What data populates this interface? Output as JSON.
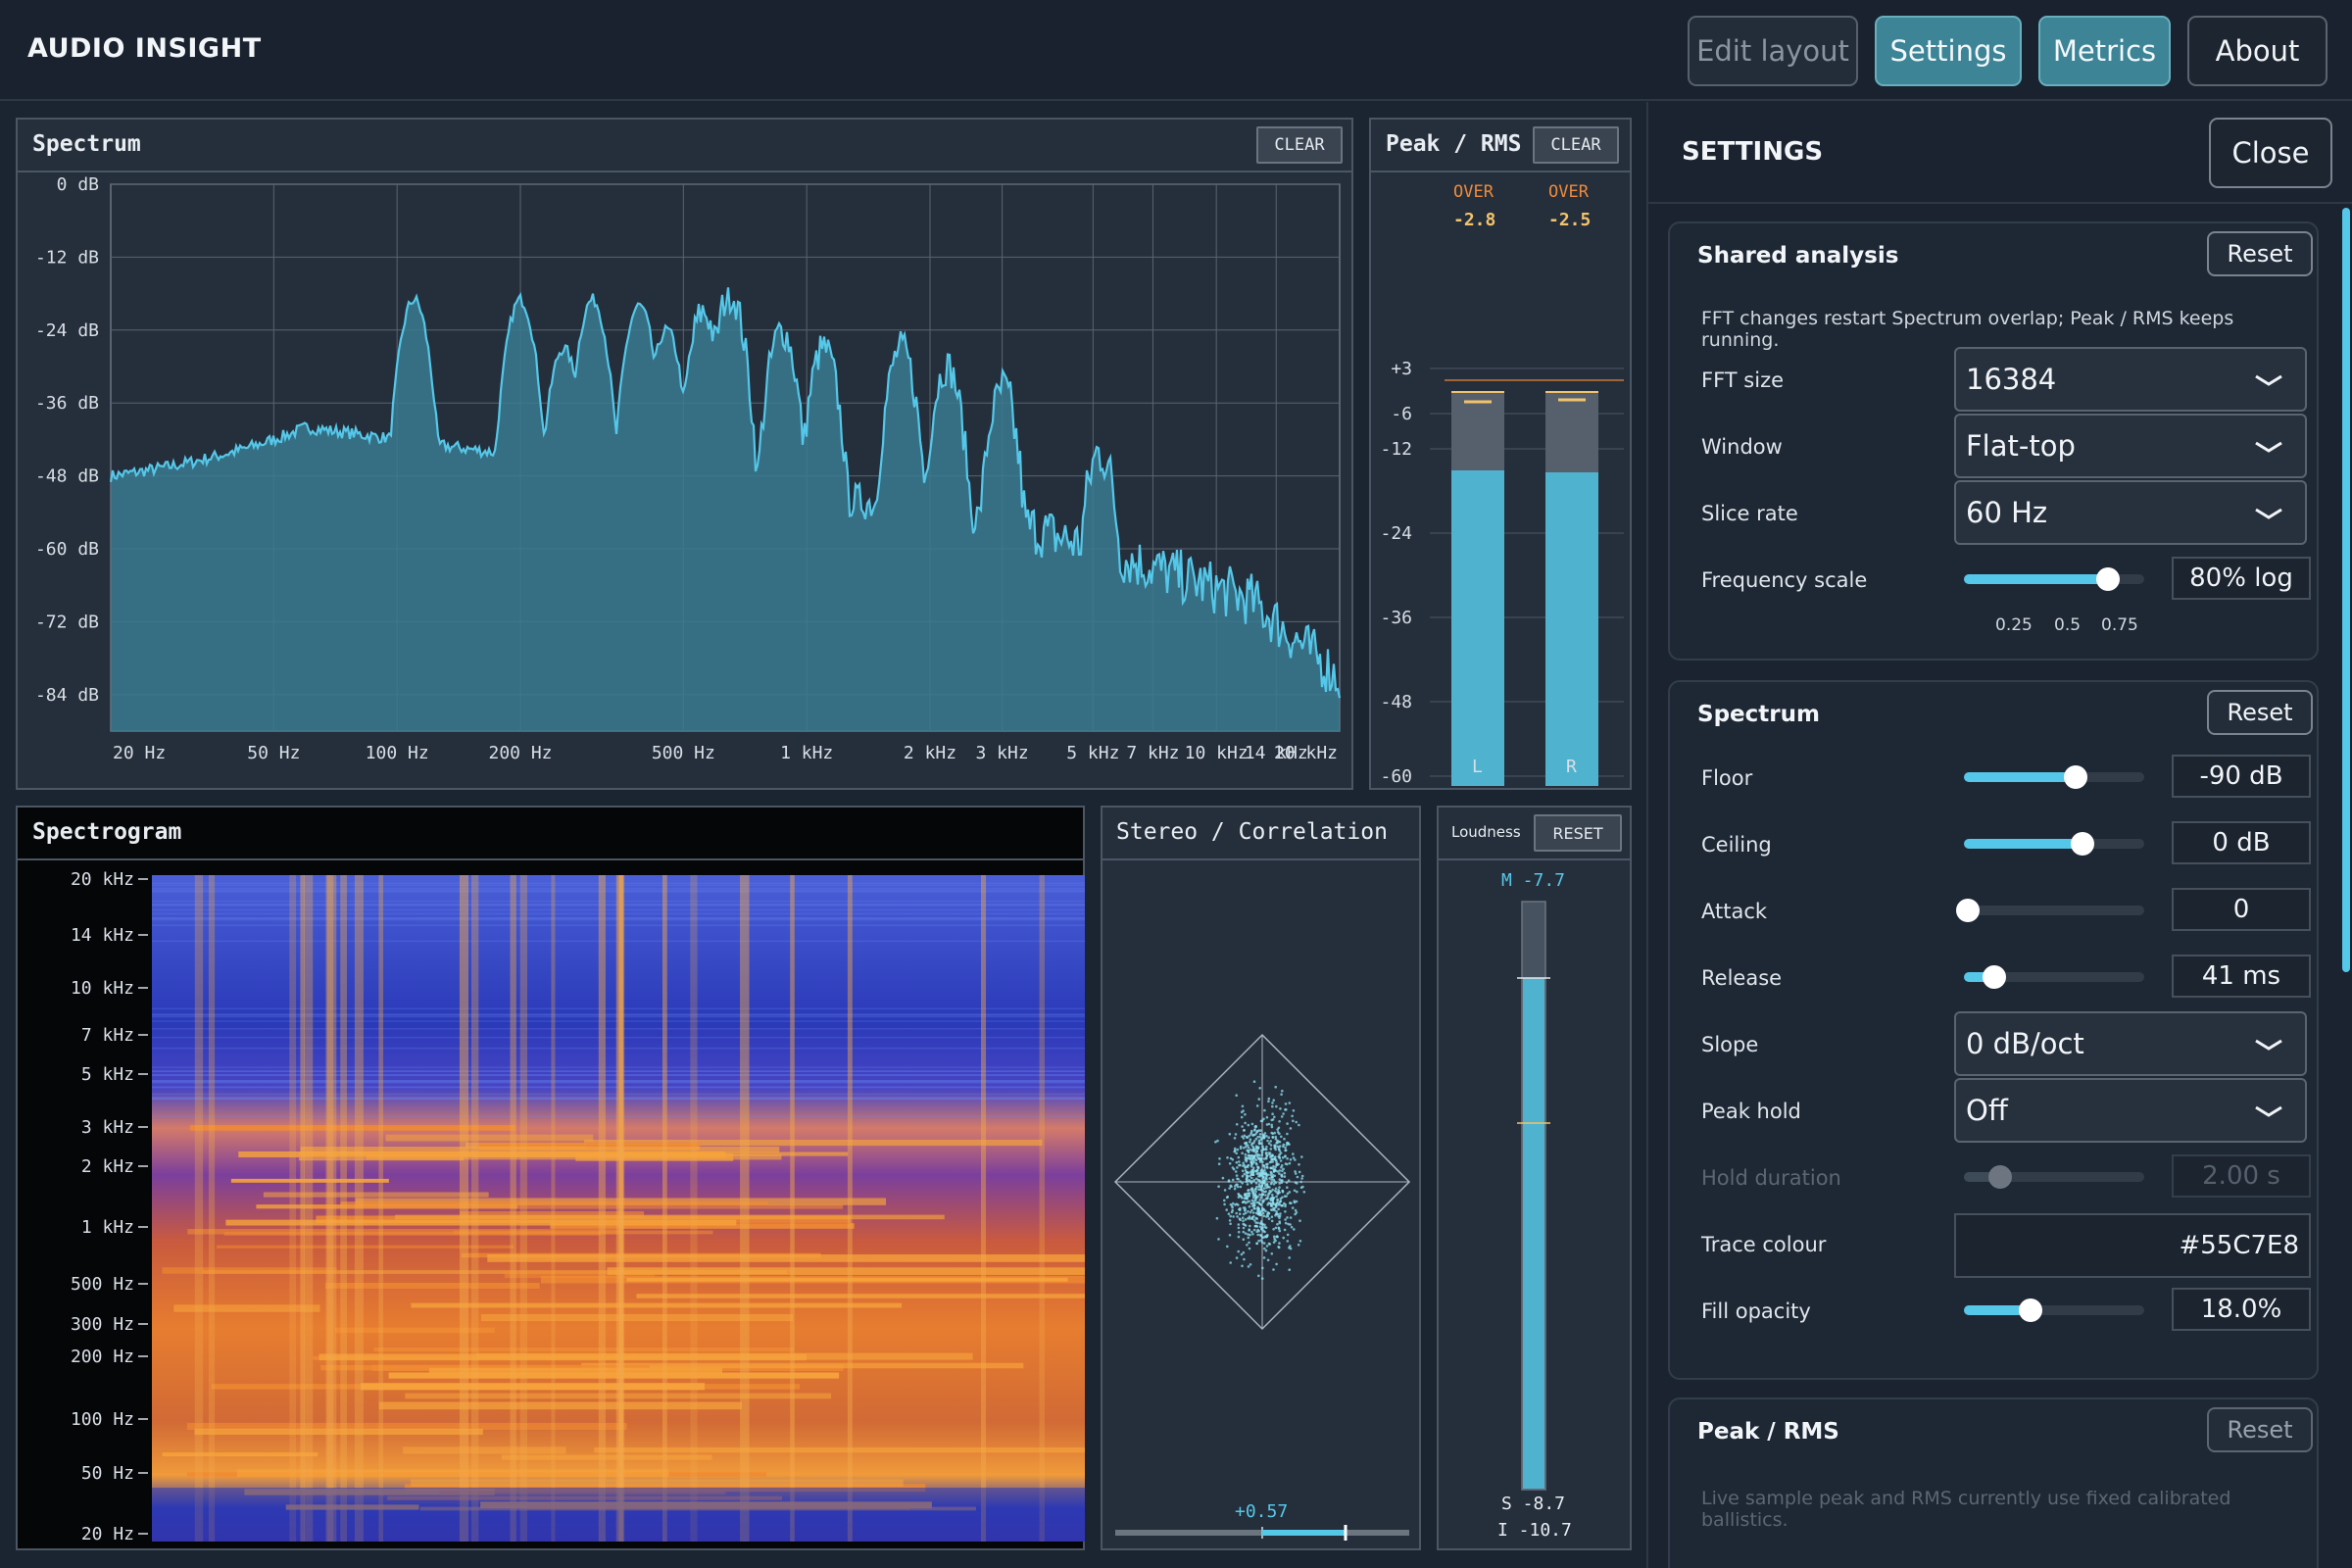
{
  "app": {
    "title": "AUDIO INSIGHT"
  },
  "header": {
    "edit_layout": "Edit layout",
    "settings": "Settings",
    "metrics": "Metrics",
    "about": "About"
  },
  "spectrum": {
    "title": "Spectrum",
    "clear": "CLEAR",
    "y_ticks": [
      "0 dB",
      "-12 dB",
      "-24 dB",
      "-36 dB",
      "-48 dB",
      "-60 dB",
      "-72 dB",
      "-84 dB"
    ],
    "x_ticks": [
      "20 Hz",
      "50 Hz",
      "100 Hz",
      "200 Hz",
      "500 Hz",
      "1 kHz",
      "2 kHz",
      "3 kHz",
      "5 kHz",
      "7 kHz",
      "10 kHz",
      "14 kHz",
      "20 kHz"
    ],
    "trace_color": "#55C7E8"
  },
  "peak_rms": {
    "title": "Peak / RMS",
    "clear": "CLEAR",
    "over_label": "OVER",
    "left_peak": "-2.8",
    "right_peak": "-2.5",
    "scale": [
      "+3",
      "-6",
      "-12",
      "-24",
      "-36",
      "-48",
      "-60"
    ],
    "channels": [
      "L",
      "R"
    ]
  },
  "spectrogram": {
    "title": "Spectrogram",
    "freq_ticks": [
      "20 kHz",
      "14 kHz",
      "10 kHz",
      "7 kHz",
      "5 kHz",
      "3 kHz",
      "2 kHz",
      "1 kHz",
      "500 Hz",
      "300 Hz",
      "200 Hz",
      "100 Hz",
      "50 Hz",
      "20 Hz"
    ]
  },
  "stereo": {
    "title": "Stereo / Correlation",
    "correlation": "+0.57"
  },
  "loudness": {
    "title": "Loudness",
    "reset": "RESET",
    "momentary": "M -7.7",
    "short_term": "S -8.7",
    "integrated": "I -10.7"
  },
  "settings": {
    "title": "SETTINGS",
    "close": "Close",
    "shared": {
      "title": "Shared analysis",
      "reset": "Reset",
      "note": "FFT changes restart Spectrum overlap; Peak / RMS keeps running.",
      "fft_label": "FFT size",
      "fft_value": "16384",
      "window_label": "Window",
      "window_value": "Flat-top",
      "slice_label": "Slice rate",
      "slice_value": "60 Hz",
      "freqscale_label": "Frequency scale",
      "freqscale_value": "80% log",
      "freqscale_level": 0.8,
      "freqscale_ticks": [
        "0.25",
        "0.5",
        "0.75"
      ]
    },
    "spectrum": {
      "title": "Spectrum",
      "reset": "Reset",
      "floor_label": "Floor",
      "floor_value": "-90 dB",
      "floor_level": 0.62,
      "ceiling_label": "Ceiling",
      "ceiling_value": "0 dB",
      "ceiling_level": 0.66,
      "attack_label": "Attack",
      "attack_value": "0",
      "attack_level": 0.02,
      "release_label": "Release",
      "release_value": "41 ms",
      "release_level": 0.17,
      "slope_label": "Slope",
      "slope_value": "0 dB/oct",
      "peakhold_label": "Peak hold",
      "peakhold_value": "Off",
      "holddur_label": "Hold duration",
      "holddur_value": "2.00 s",
      "holddur_level": 0.2,
      "trace_label": "Trace colour",
      "trace_value": "#55C7E8",
      "opacity_label": "Fill opacity",
      "opacity_value": "18.0%",
      "opacity_level": 0.37
    },
    "peak_rms": {
      "title": "Peak / RMS",
      "reset": "Reset",
      "note": "Live sample peak and RMS currently use fixed calibrated ballistics."
    }
  }
}
